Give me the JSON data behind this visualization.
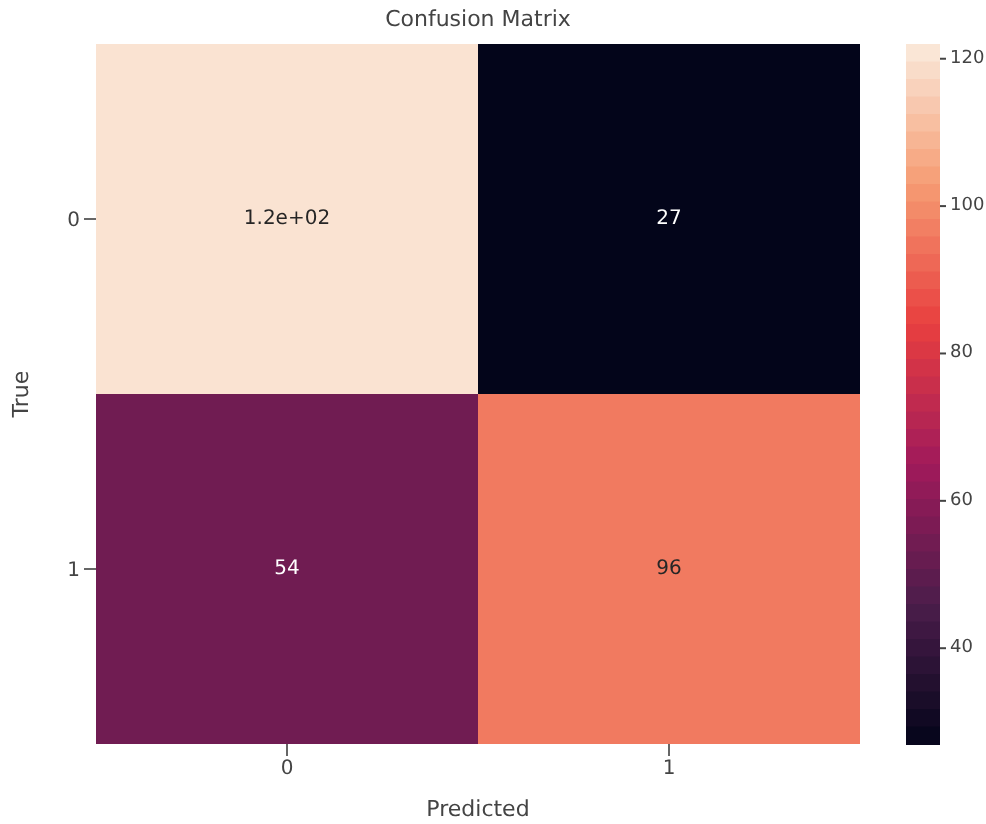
{
  "chart_data": {
    "type": "heatmap",
    "title": "Confusion Matrix",
    "xlabel": "Predicted",
    "ylabel": "True",
    "categories": [
      "0",
      "1"
    ],
    "y_categories": [
      "0",
      "1"
    ],
    "cells": [
      [
        120,
        27
      ],
      [
        54,
        96
      ]
    ],
    "cell_labels": [
      [
        "1.2e+02",
        "27"
      ],
      [
        "54",
        "96"
      ]
    ],
    "clim": [
      27,
      122
    ],
    "cticks": [
      40,
      60,
      80,
      100,
      120
    ]
  }
}
